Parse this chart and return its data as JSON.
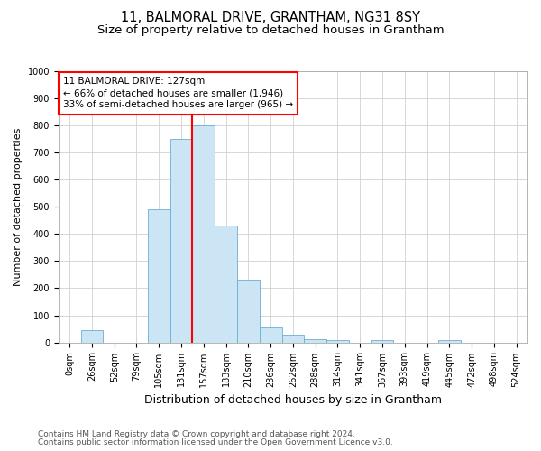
{
  "title1": "11, BALMORAL DRIVE, GRANTHAM, NG31 8SY",
  "title2": "Size of property relative to detached houses in Grantham",
  "xlabel": "Distribution of detached houses by size in Grantham",
  "ylabel": "Number of detached properties",
  "bar_labels": [
    "0sqm",
    "26sqm",
    "52sqm",
    "79sqm",
    "105sqm",
    "131sqm",
    "157sqm",
    "183sqm",
    "210sqm",
    "236sqm",
    "262sqm",
    "288sqm",
    "314sqm",
    "341sqm",
    "367sqm",
    "393sqm",
    "419sqm",
    "445sqm",
    "472sqm",
    "498sqm",
    "524sqm"
  ],
  "bar_heights": [
    0,
    45,
    0,
    0,
    490,
    750,
    800,
    430,
    230,
    55,
    30,
    13,
    10,
    0,
    8,
    0,
    0,
    8,
    0,
    0,
    0
  ],
  "bar_color": "#cce5f5",
  "bar_edge_color": "#6aaed6",
  "vline_x_index": 6,
  "vline_color": "red",
  "ylim": [
    0,
    1000
  ],
  "yticks": [
    0,
    100,
    200,
    300,
    400,
    500,
    600,
    700,
    800,
    900,
    1000
  ],
  "annotation_box_text": "11 BALMORAL DRIVE: 127sqm\n← 66% of detached houses are smaller (1,946)\n33% of semi-detached houses are larger (965) →",
  "annotation_box_edge": "red",
  "footnote1": "Contains HM Land Registry data © Crown copyright and database right 2024.",
  "footnote2": "Contains public sector information licensed under the Open Government Licence v3.0.",
  "title1_fontsize": 10.5,
  "title2_fontsize": 9.5,
  "xlabel_fontsize": 9,
  "ylabel_fontsize": 8,
  "tick_fontsize": 7,
  "annotation_fontsize": 7.5,
  "footnote_fontsize": 6.5,
  "background_color": "#ffffff",
  "grid_color": "#d0d0d0"
}
